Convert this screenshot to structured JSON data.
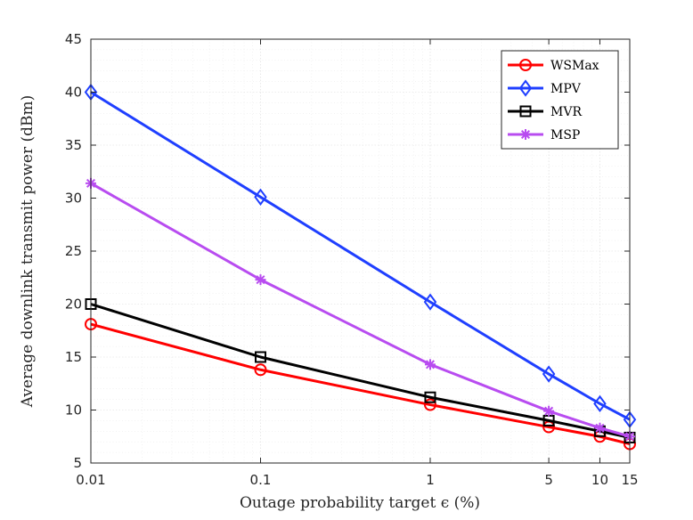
{
  "chart_data": {
    "type": "line",
    "title": "",
    "xlabel": "Outage probability target ϵ (%)",
    "ylabel": "Average downlink transmit power (dBm)",
    "xscale": "log",
    "x": [
      0.01,
      0.1,
      1,
      5,
      10,
      15
    ],
    "xlim": [
      0.01,
      15
    ],
    "ylim": [
      5,
      45
    ],
    "xticks": [
      0.01,
      0.1,
      1,
      5,
      10,
      15
    ],
    "xtick_labels": [
      "0.01",
      "0.1",
      "1",
      "5",
      "10",
      "15"
    ],
    "yticks": [
      5,
      10,
      15,
      20,
      25,
      30,
      35,
      40,
      45
    ],
    "ytick_labels": [
      "5",
      "10",
      "15",
      "20",
      "25",
      "30",
      "35",
      "40",
      "45"
    ],
    "grid": true,
    "legend_position": "top-right",
    "series": [
      {
        "name": "WSMax",
        "color": "#ff0000",
        "marker": "circle",
        "values": [
          18.1,
          13.8,
          10.5,
          8.4,
          7.5,
          6.8
        ]
      },
      {
        "name": "MPV",
        "color": "#1f3fff",
        "marker": "diamond",
        "values": [
          40.0,
          30.1,
          20.2,
          13.4,
          10.6,
          9.1
        ]
      },
      {
        "name": "MVR",
        "color": "#000000",
        "marker": "square",
        "values": [
          20.0,
          15.0,
          11.2,
          9.0,
          8.0,
          7.4
        ]
      },
      {
        "name": "MSP",
        "color": "#b84cf0",
        "marker": "asterisk",
        "values": [
          31.4,
          22.3,
          14.3,
          9.9,
          8.3,
          7.5
        ]
      }
    ]
  }
}
